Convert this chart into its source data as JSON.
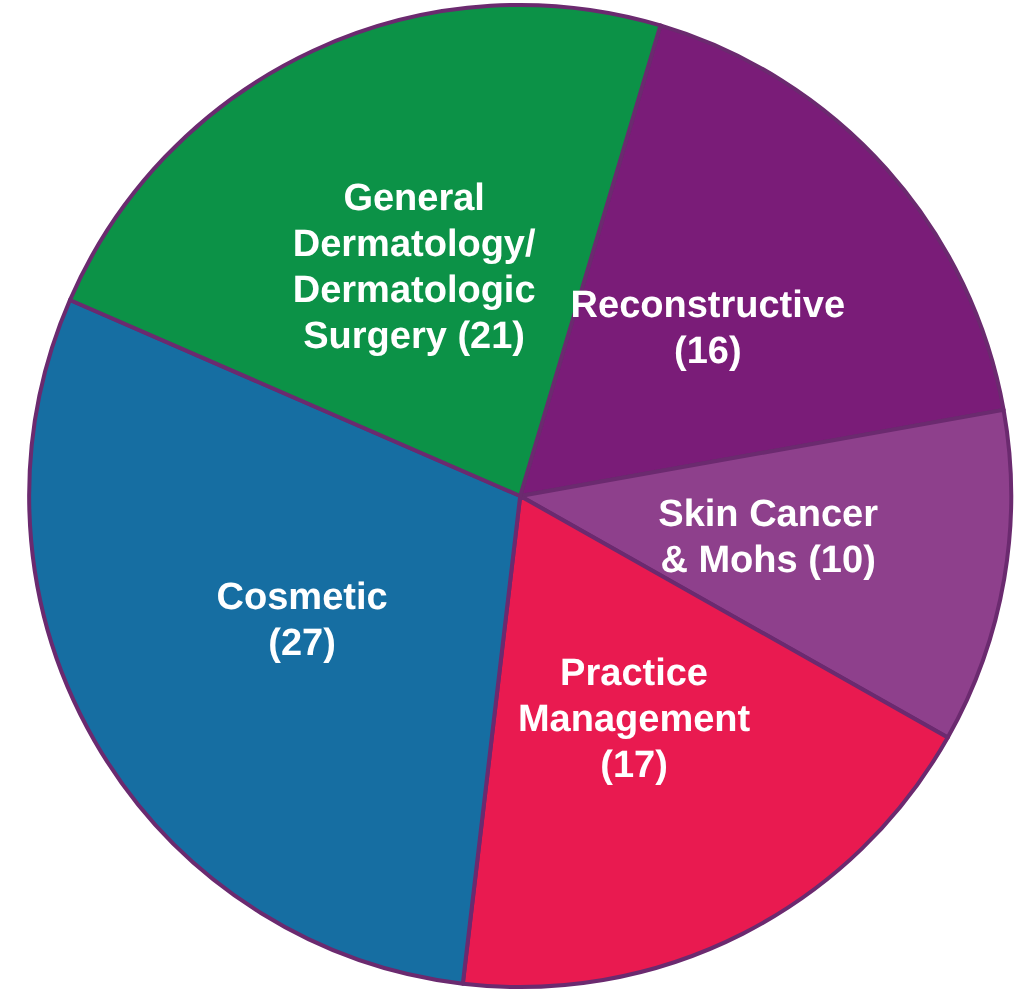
{
  "chart_data": {
    "type": "pie",
    "categories": [
      "Reconstructive",
      "Skin Cancer & Mohs",
      "Practice Management",
      "Cosmetic",
      "General Dermatology/ Dermatologic Surgery"
    ],
    "values": [
      16,
      10,
      17,
      27,
      21
    ],
    "colors": [
      "#7a1c78",
      "#8e408c",
      "#e91a50",
      "#166ea2",
      "#0c9247"
    ],
    "value_labels": [
      "(16)",
      "(10)",
      "(17)",
      "(27)",
      "(21)"
    ]
  }
}
